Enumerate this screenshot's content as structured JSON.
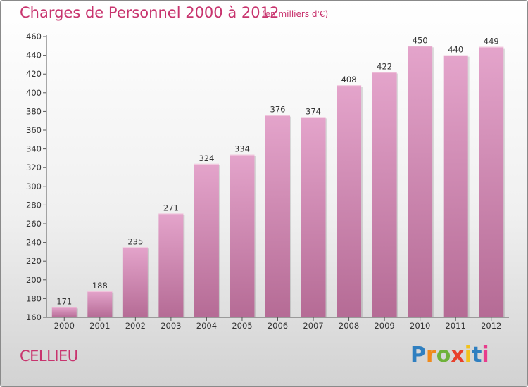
{
  "title": "Charges de Personnel 2000 à 2012",
  "unit": "(en milliers d'€)",
  "commune": "CELLIEU",
  "logo": {
    "letters": [
      "P",
      "r",
      "o",
      "x",
      "i",
      "t",
      "i"
    ],
    "colors": [
      "#2f7fc0",
      "#f08a1c",
      "#6fb23a",
      "#e8402c",
      "#f2c21b",
      "#2f7fc0",
      "#e83c8c"
    ]
  },
  "colors": {
    "bar_light": "#e4a4cb",
    "bar_dark": "#b56b95",
    "text_pink": "#c8346e"
  },
  "chart_data": {
    "type": "bar",
    "title": "Charges de Personnel 2000 à 2012",
    "subtitle": "(en milliers d'€)",
    "categories": [
      "2000",
      "2001",
      "2002",
      "2003",
      "2004",
      "2005",
      "2006",
      "2007",
      "2008",
      "2009",
      "2010",
      "2011",
      "2012"
    ],
    "values": [
      171,
      188,
      235,
      271,
      324,
      334,
      376,
      374,
      408,
      422,
      450,
      440,
      449
    ],
    "yticks": [
      160,
      180,
      200,
      220,
      240,
      260,
      280,
      300,
      320,
      340,
      360,
      380,
      400,
      420,
      440,
      460
    ],
    "ylim": [
      160,
      460
    ],
    "xlabel": "",
    "ylabel": "",
    "grid": false
  }
}
